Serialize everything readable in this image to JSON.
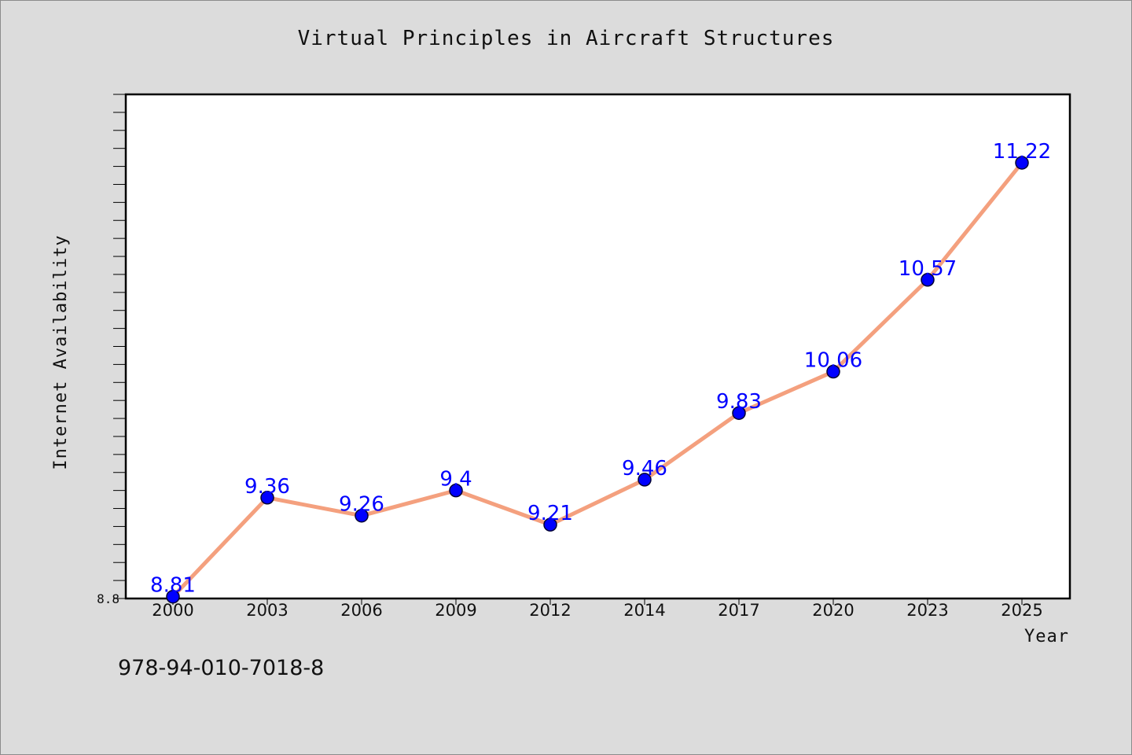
{
  "title": "Virtual Principles in Aircraft Structures",
  "footer_text": "978-94-010-7018-8",
  "chart_data": {
    "type": "line",
    "title": "Virtual Principles in Aircraft Structures",
    "xlabel": "Year",
    "ylabel": "Internet Availability",
    "categories": [
      "2000",
      "2003",
      "2006",
      "2009",
      "2012",
      "2014",
      "2017",
      "2020",
      "2023",
      "2025"
    ],
    "values": [
      8.81,
      9.36,
      9.26,
      9.4,
      9.21,
      9.46,
      9.83,
      10.06,
      10.57,
      11.22
    ],
    "data_labels": [
      "8.81",
      "9.36",
      "9.26",
      "9.4",
      "9.21",
      "9.46",
      "9.83",
      "10.06",
      "10.57",
      "11.22"
    ],
    "ylim": [
      8.8,
      11.6
    ],
    "ytick_labels": [
      {
        "value": 8.8,
        "label": "8.8"
      }
    ],
    "line_color": "#f4a07e",
    "marker_color": "#0000ff",
    "label_color": "#0000ff",
    "grid": false
  }
}
